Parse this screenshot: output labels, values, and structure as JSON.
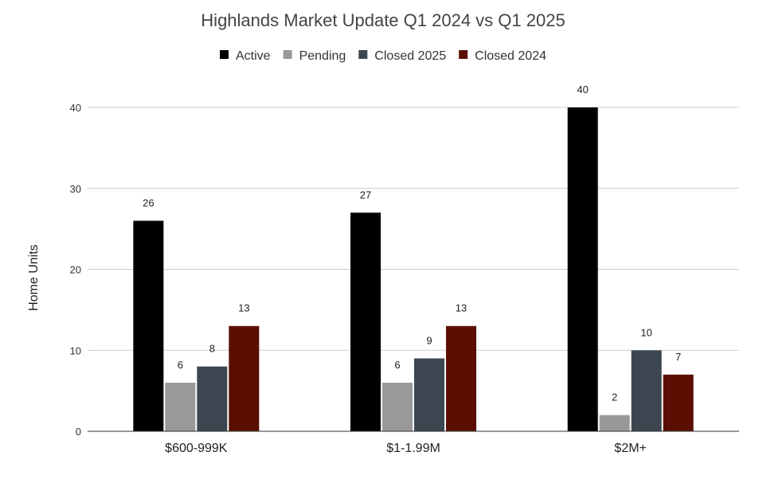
{
  "chart_data": {
    "type": "bar",
    "title": "Highlands Market Update Q1 2024 vs Q1 2025",
    "xlabel": "",
    "ylabel": "Home Units",
    "ylim": [
      0,
      40
    ],
    "yticks": [
      0,
      10,
      20,
      30,
      40
    ],
    "grid": true,
    "legend_position": "top",
    "categories": [
      "$600-999K",
      "$1-1.99M",
      "$2M+"
    ],
    "series": [
      {
        "name": "Active",
        "color": "#000000",
        "values": [
          26,
          27,
          40
        ]
      },
      {
        "name": "Pending",
        "color": "#999999",
        "values": [
          6,
          6,
          2
        ]
      },
      {
        "name": "Closed 2025",
        "color": "#3c4650",
        "values": [
          8,
          9,
          10
        ]
      },
      {
        "name": "Closed 2024",
        "color": "#5a0f02",
        "values": [
          13,
          13,
          7
        ]
      }
    ]
  }
}
